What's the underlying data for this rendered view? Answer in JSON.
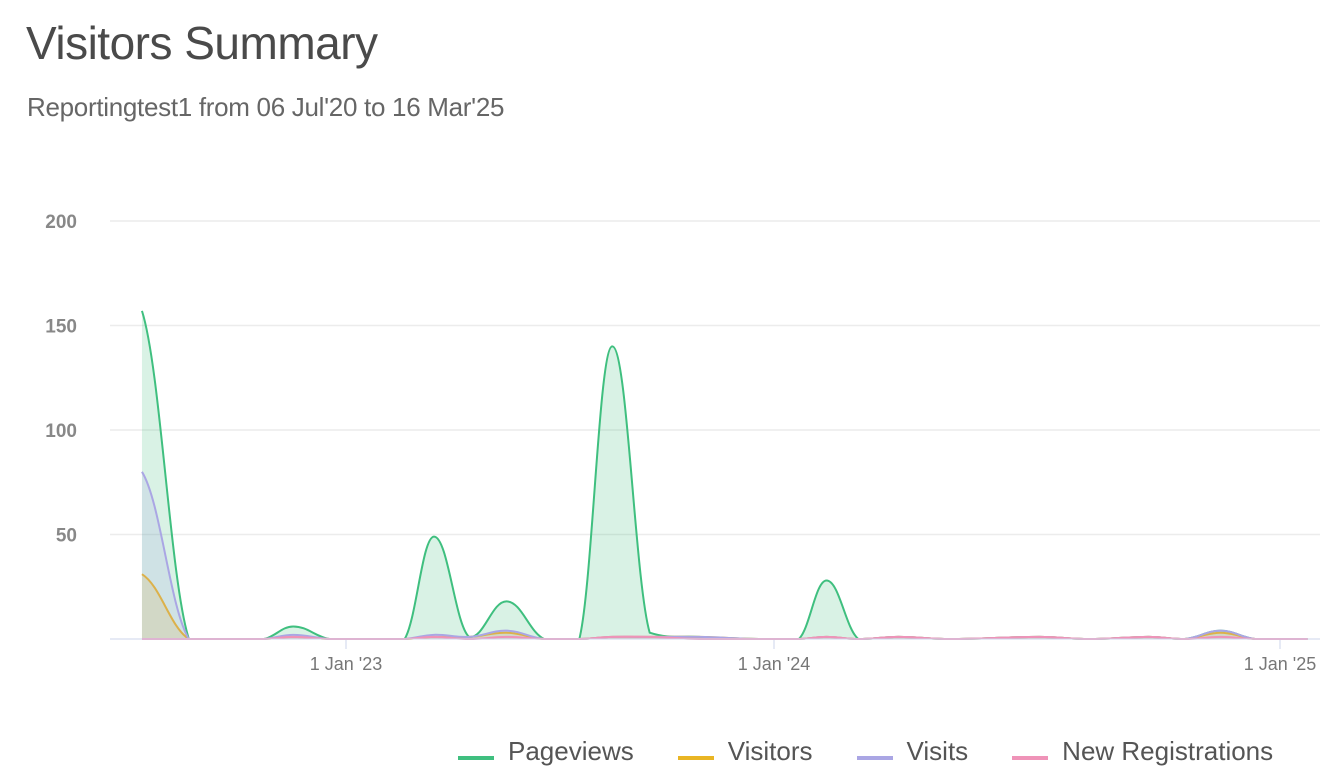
{
  "header": {
    "title": "Visitors Summary",
    "subtitle": "Reportingtest1 from 06 Jul'20 to 16 Mar'25"
  },
  "chart_data": {
    "type": "area",
    "title": "Visitors Summary",
    "subtitle": "Reportingtest1 from 06 Jul'20 to 16 Mar'25",
    "xlabel": "",
    "ylabel": "",
    "ylim": [
      0,
      200
    ],
    "yticks": [
      0,
      50,
      100,
      150,
      200
    ],
    "ytick_labels": [
      "",
      "50",
      "100",
      "150",
      "200"
    ],
    "xticks": [
      {
        "date": "2023-01-01",
        "label": "1 Jan '23"
      },
      {
        "date": "2024-01-01",
        "label": "1 Jan '24"
      },
      {
        "date": "2025-01-01",
        "label": "1 Jan '25"
      }
    ],
    "grid": true,
    "legend": "bottom-right",
    "x": [
      "2022-07-11",
      "2022-08-20",
      "2022-10-23",
      "2022-11-17",
      "2022-12-18",
      "2023-02-20",
      "2023-03-17",
      "2023-04-16",
      "2023-05-18",
      "2023-06-19",
      "2023-07-19",
      "2023-08-16",
      "2023-09-17",
      "2023-10-29",
      "2023-12-19",
      "2024-01-19",
      "2024-02-08",
      "2024-03-02",
      "2024-03-31",
      "2024-05-07",
      "2024-07-11",
      "2024-08-16",
      "2024-09-28",
      "2024-10-24",
      "2024-11-19",
      "2024-12-14",
      "2025-01-21"
    ],
    "series": [
      {
        "name": "Pageviews",
        "color": "#3fbf7f",
        "values": [
          157,
          0,
          0,
          6,
          0,
          0,
          49,
          1,
          18,
          0,
          0,
          140,
          3,
          1,
          0,
          0,
          28,
          0,
          1,
          0,
          1,
          0,
          1,
          0,
          4,
          0,
          0
        ]
      },
      {
        "name": "Visitors",
        "color": "#e9b524",
        "values": [
          31,
          0,
          0,
          1,
          0,
          0,
          1,
          1,
          3,
          0,
          0,
          1,
          1,
          1,
          0,
          0,
          1,
          0,
          1,
          0,
          1,
          0,
          1,
          0,
          3,
          0,
          0
        ]
      },
      {
        "name": "Visits",
        "color": "#aaa6e4",
        "values": [
          80,
          0,
          0,
          2,
          0,
          0,
          2,
          1,
          4,
          0,
          0,
          1,
          1,
          1,
          0,
          0,
          1,
          0,
          1,
          0,
          1,
          0,
          1,
          0,
          4,
          0,
          0
        ]
      },
      {
        "name": "New Registrations",
        "color": "#ef93b8",
        "values": [
          0,
          0,
          0,
          1,
          0,
          0,
          1,
          0,
          1,
          0,
          0,
          1,
          1,
          0,
          0,
          0,
          1,
          0,
          1,
          0,
          1,
          0,
          1,
          0,
          1,
          0,
          0
        ]
      }
    ]
  }
}
